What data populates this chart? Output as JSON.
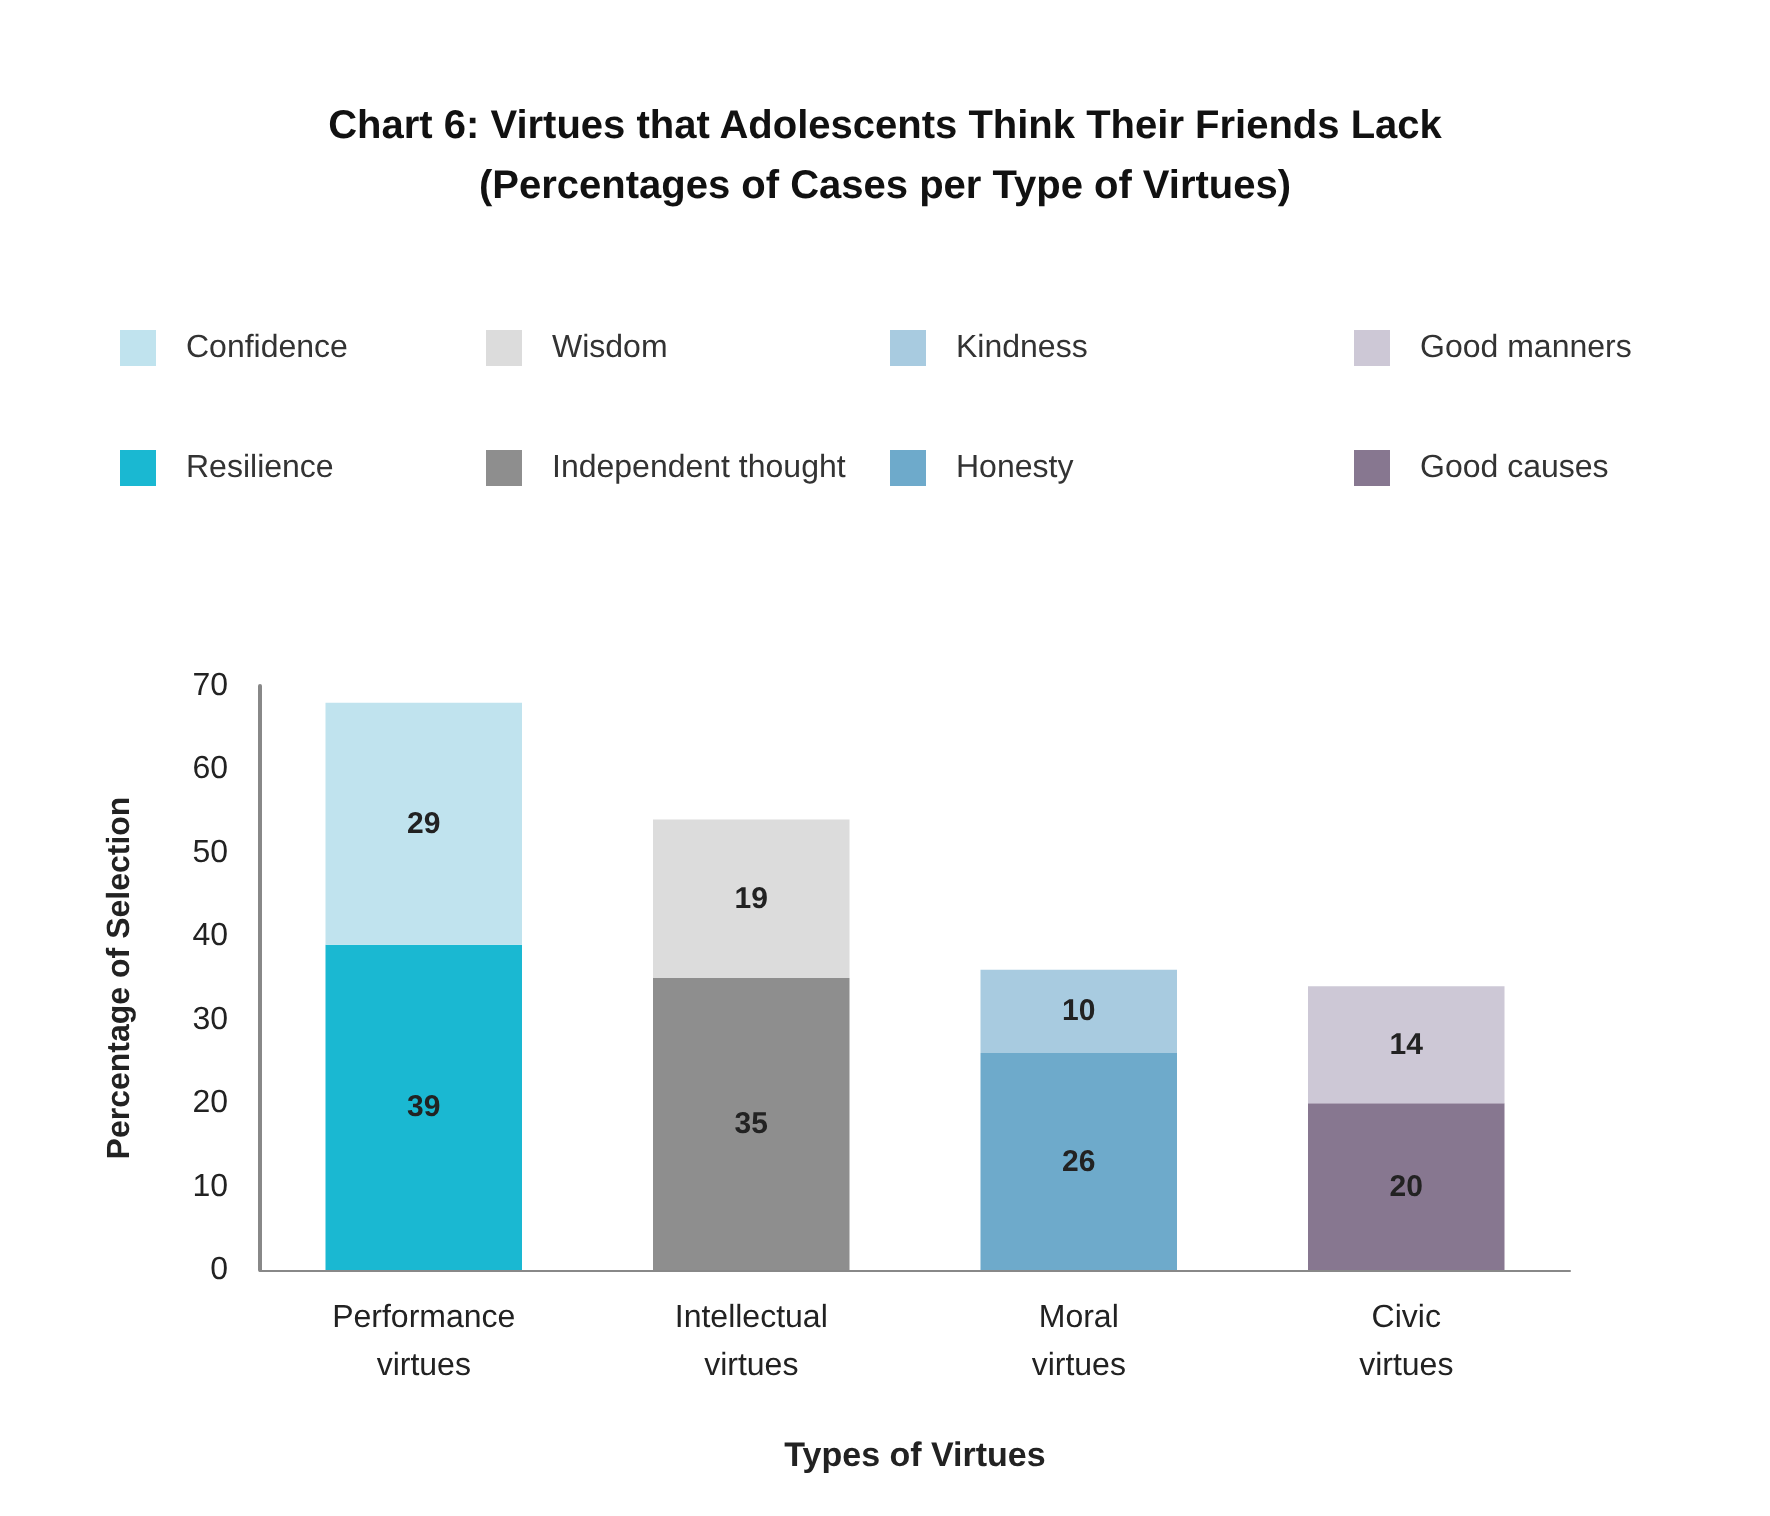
{
  "chart_data": {
    "type": "bar",
    "title": "Chart 6: Virtues that Adolescents Think Their Friends Lack",
    "subtitle": "(Percentages of Cases per Type of Virtues)",
    "xlabel": "Types of Virtues",
    "ylabel": "Percentage of Selection",
    "categories": [
      "Performance\nvirtues",
      "Intellectual\nvirtues",
      "Moral\nvirtues",
      "Civic\nvirtues"
    ],
    "stacked": true,
    "series": [
      {
        "name": "Resilience",
        "color": "#1ab8d2",
        "values": [
          39,
          null,
          null,
          null
        ]
      },
      {
        "name": "Confidence",
        "color": "#c0e3ee",
        "values": [
          29,
          null,
          null,
          null
        ]
      },
      {
        "name": "Independent thought",
        "color": "#8e8e8e",
        "values": [
          null,
          35,
          null,
          null
        ]
      },
      {
        "name": "Wisdom",
        "color": "#dcdcdc",
        "values": [
          null,
          19,
          null,
          null
        ]
      },
      {
        "name": "Honesty",
        "color": "#6eaacb",
        "values": [
          null,
          null,
          26,
          null
        ]
      },
      {
        "name": "Kindness",
        "color": "#a8cbe0",
        "values": [
          null,
          null,
          10,
          null
        ]
      },
      {
        "name": "Good causes",
        "color": "#877790",
        "values": [
          null,
          null,
          null,
          20
        ]
      },
      {
        "name": "Good manners",
        "color": "#cdc8d6",
        "values": [
          null,
          null,
          null,
          14
        ]
      }
    ],
    "ylim": [
      0,
      70
    ],
    "yticks": [
      0,
      10,
      20,
      30,
      40,
      50,
      60,
      70
    ],
    "grid": false,
    "legend": "top",
    "data_labels": true
  }
}
